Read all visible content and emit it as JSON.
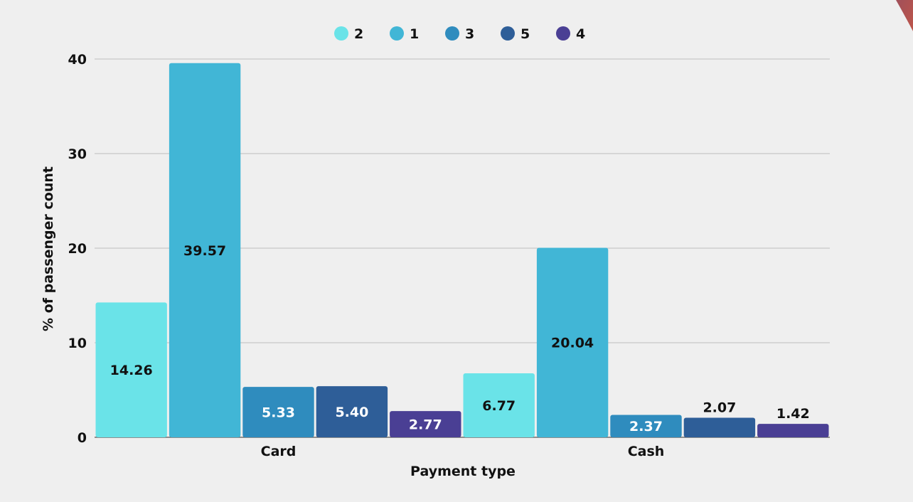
{
  "chart_data": {
    "type": "bar",
    "xlabel": "Payment type",
    "ylabel": "% of passenger count",
    "categories": [
      "Card",
      "Cash"
    ],
    "series": [
      {
        "name": "2",
        "color": "#6ae3e8",
        "values": [
          14.26,
          6.77
        ]
      },
      {
        "name": "1",
        "color": "#41b6d6",
        "values": [
          39.57,
          20.04
        ]
      },
      {
        "name": "3",
        "color": "#2f8cbe",
        "values": [
          5.33,
          2.37
        ]
      },
      {
        "name": "5",
        "color": "#2e5e98",
        "values": [
          5.4,
          2.07
        ]
      },
      {
        "name": "4",
        "color": "#4a3f94",
        "values": [
          2.77,
          1.42
        ]
      }
    ],
    "yticks": [
      0,
      10,
      20,
      30,
      40
    ],
    "ylim": [
      0,
      40
    ],
    "grid": true,
    "legend_position": "top-center",
    "accent_color": "#f06a36"
  }
}
